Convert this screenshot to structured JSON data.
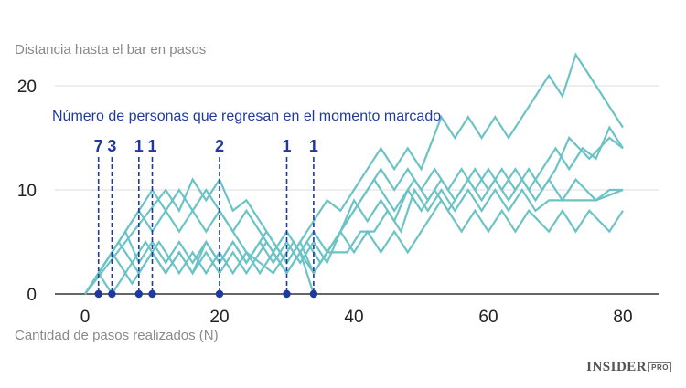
{
  "brand": {
    "name": "INSIDER",
    "suffix": "PRO"
  },
  "chart_data": {
    "type": "line",
    "ylabel": "Distancia hasta el bar en pasos",
    "xlabel": "Cantidad de pasos realizados (N)",
    "annotation": "Número de personas que regresan en el momento marcado",
    "xlim": [
      -10,
      85
    ],
    "ylim": [
      0,
      24
    ],
    "xticks": [
      0,
      20,
      40,
      60,
      80
    ],
    "yticks": [
      0,
      10,
      20
    ],
    "grid": "horizontal",
    "line_color": "#6cc3c6",
    "marker_color": "#1f3a9e",
    "series": [
      {
        "x": [
          0,
          2,
          5,
          8,
          11,
          14,
          16,
          18,
          20,
          22,
          24,
          26,
          28,
          30,
          32,
          34
        ],
        "y": [
          0,
          2,
          5,
          2,
          5,
          2,
          4,
          2,
          4,
          2,
          4,
          2,
          4,
          2,
          4,
          0
        ]
      },
      {
        "x": [
          0,
          2,
          4,
          6,
          9,
          12,
          14,
          16,
          18,
          20,
          22,
          24,
          27,
          30,
          33,
          35,
          38,
          40,
          42,
          44,
          46,
          48,
          50,
          53,
          56,
          58,
          60,
          62,
          64,
          66,
          69,
          71,
          73,
          75,
          78,
          80
        ],
        "y": [
          0,
          2,
          0,
          2,
          5,
          2,
          4,
          2,
          4,
          2,
          4,
          2,
          5,
          2,
          5,
          3,
          6,
          4,
          6,
          4,
          6,
          4,
          6,
          9,
          6,
          8,
          6,
          8,
          6,
          8,
          6,
          8,
          6,
          8,
          6,
          8
        ]
      },
      {
        "x": [
          0,
          4,
          7,
          10,
          12,
          14,
          16,
          18,
          20,
          22,
          24,
          27,
          30,
          32,
          34,
          36,
          39,
          41,
          43,
          45,
          47,
          49,
          51,
          53,
          55,
          57,
          59,
          61,
          63,
          65,
          67,
          69,
          71,
          73,
          76,
          78,
          80
        ],
        "y": [
          0,
          4,
          1,
          4,
          2,
          4,
          2,
          5,
          3,
          5,
          3,
          6,
          3,
          5,
          2,
          4,
          4,
          6,
          6,
          8,
          6,
          10,
          8,
          10,
          8,
          10,
          8,
          10,
          8,
          10,
          8,
          9,
          9,
          9,
          9,
          10,
          10
        ]
      },
      {
        "x": [
          0,
          6,
          8,
          10,
          12,
          14,
          16,
          18,
          20,
          22,
          24,
          26,
          28,
          30,
          32,
          34,
          36,
          38,
          40,
          42,
          44,
          46,
          48,
          50,
          52,
          54,
          56,
          58,
          60,
          62,
          64,
          66,
          68,
          70,
          72,
          75,
          78,
          80
        ],
        "y": [
          0,
          6,
          3,
          5,
          3,
          5,
          3,
          5,
          3,
          5,
          3,
          5,
          3,
          5,
          3,
          5,
          3,
          6,
          9,
          7,
          9,
          7,
          10,
          8,
          10,
          8,
          10,
          12,
          10,
          12,
          10,
          12,
          10,
          12,
          15,
          13,
          15,
          14
        ]
      },
      {
        "x": [
          0,
          8,
          10,
          12,
          14,
          16,
          18,
          20,
          22,
          24,
          26,
          28,
          30,
          32,
          34,
          36,
          38,
          40,
          42,
          44,
          46,
          48,
          50,
          52,
          54,
          56,
          58,
          60,
          62,
          64,
          66,
          68,
          70,
          72,
          74,
          76,
          78,
          80
        ],
        "y": [
          0,
          8,
          6,
          8,
          6,
          8,
          6,
          8,
          6,
          8,
          6,
          4,
          6,
          4,
          6,
          4,
          6,
          8,
          10,
          12,
          10,
          12,
          10,
          12,
          10,
          12,
          10,
          12,
          10,
          12,
          10,
          12,
          14,
          12,
          14,
          13,
          16,
          14
        ]
      },
      {
        "x": [
          0,
          10,
          12,
          14,
          16,
          18,
          20,
          24,
          28,
          31,
          34,
          37,
          40,
          43,
          46,
          49,
          51,
          53,
          55,
          57,
          59,
          61,
          63,
          65,
          67,
          69,
          71,
          73,
          76,
          80
        ],
        "y": [
          0,
          10,
          8,
          10,
          8,
          10,
          8,
          4,
          2,
          5,
          2,
          5,
          8,
          11,
          8,
          11,
          9,
          11,
          9,
          11,
          9,
          11,
          9,
          11,
          9,
          11,
          9,
          11,
          9,
          10
        ]
      },
      {
        "x": [
          0,
          12,
          14,
          16,
          18,
          20,
          22,
          24,
          26,
          28,
          30,
          32,
          34,
          36,
          38,
          40,
          42,
          44,
          46,
          48,
          50,
          53,
          55,
          57,
          59,
          61,
          63,
          65,
          67,
          69,
          71,
          73,
          76,
          79,
          80
        ],
        "y": [
          0,
          10,
          8,
          11,
          9,
          11,
          8,
          9,
          7,
          5,
          3,
          5,
          7,
          9,
          8,
          10,
          12,
          14,
          12,
          14,
          12,
          17,
          15,
          17,
          15,
          17,
          15,
          17,
          19,
          21,
          19,
          23,
          20,
          17,
          16
        ]
      }
    ],
    "markers": [
      {
        "x": 2,
        "label": "7"
      },
      {
        "x": 4,
        "label": "3"
      },
      {
        "x": 8,
        "label": "1"
      },
      {
        "x": 10,
        "label": "1"
      },
      {
        "x": 20,
        "label": "2"
      },
      {
        "x": 30,
        "label": "1"
      },
      {
        "x": 34,
        "label": "1"
      }
    ]
  }
}
